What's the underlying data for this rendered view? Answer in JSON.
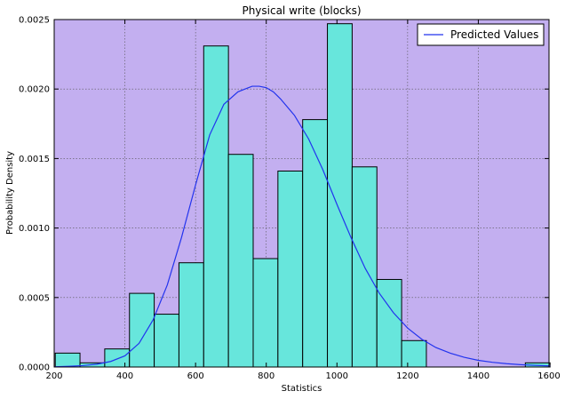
{
  "chart_data": {
    "type": "bar",
    "title": "Physical write (blocks)",
    "xlabel": "Statistics",
    "ylabel": "Probability Density",
    "xlim": [
      200,
      1600
    ],
    "ylim": [
      0,
      0.0025
    ],
    "grid": true,
    "legend_position": "top-right",
    "colors": {
      "plot_background": "#c3aff0",
      "bar_fill": "#67e6dc",
      "bar_edge": "#000000",
      "line": "#2233ee",
      "grid": "#555555"
    },
    "x_ticks": [
      {
        "value": 200,
        "label": "200"
      },
      {
        "value": 400,
        "label": "400"
      },
      {
        "value": 600,
        "label": "600"
      },
      {
        "value": 800,
        "label": "800"
      },
      {
        "value": 1000,
        "label": "1000"
      },
      {
        "value": 1200,
        "label": "1200"
      },
      {
        "value": 1400,
        "label": "1400"
      },
      {
        "value": 1600,
        "label": "1600"
      }
    ],
    "y_ticks": [
      {
        "value": 0,
        "label": "0.0000"
      },
      {
        "value": 0.0005,
        "label": "0.0005"
      },
      {
        "value": 0.001,
        "label": "0.0010"
      },
      {
        "value": 0.0015,
        "label": "0.0015"
      },
      {
        "value": 0.002,
        "label": "0.0020"
      },
      {
        "value": 0.0025,
        "label": "0.0025"
      }
    ],
    "histogram": {
      "bin_edges": [
        203,
        273,
        343,
        413,
        483,
        553,
        623,
        693,
        763,
        833,
        903,
        973,
        1043,
        1113,
        1183,
        1253,
        1323,
        1393,
        1463,
        1533,
        1603
      ],
      "values": [
        0.0001,
        3e-05,
        0.00013,
        0.00053,
        0.00038,
        0.00075,
        0.00231,
        0.00153,
        0.00078,
        0.00141,
        0.00178,
        0.00247,
        0.00144,
        0.00063,
        0.00019,
        0,
        0,
        0,
        0,
        3e-05
      ]
    },
    "series": [
      {
        "name": "Predicted Values",
        "type": "line",
        "x": [
          203,
          240,
          280,
          320,
          360,
          400,
          440,
          480,
          520,
          560,
          600,
          640,
          680,
          720,
          760,
          780,
          800,
          820,
          840,
          880,
          920,
          960,
          1000,
          1040,
          1080,
          1120,
          1160,
          1200,
          1240,
          1280,
          1320,
          1360,
          1400,
          1440,
          1480,
          1520,
          1560,
          1603
        ],
        "y": [
          2e-06,
          5e-06,
          1e-05,
          2e-05,
          4e-05,
          8e-05,
          0.00017,
          0.00034,
          0.00059,
          0.00093,
          0.00131,
          0.00167,
          0.00189,
          0.00198,
          0.00202,
          0.00202,
          0.00201,
          0.00198,
          0.00193,
          0.00181,
          0.00164,
          0.00142,
          0.00117,
          0.00093,
          0.00071,
          0.00053,
          0.00039,
          0.00028,
          0.0002,
          0.00014,
          0.0001,
          7e-05,
          4.8e-05,
          3.4e-05,
          2.4e-05,
          1.7e-05,
          1.2e-05,
          8e-06
        ]
      }
    ]
  }
}
